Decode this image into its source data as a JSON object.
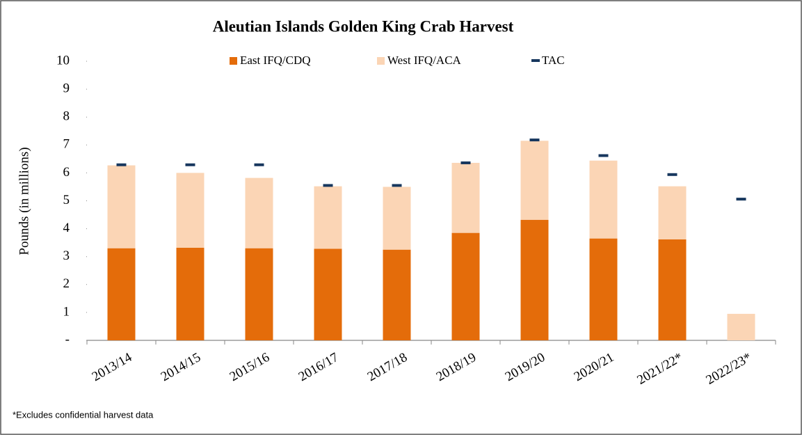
{
  "chart_data": {
    "type": "bar",
    "title": "Aleutian Islands Golden King Crab Harvest",
    "y_label": "Pounds (in millions)",
    "footnote": "*Excludes confidential harvest data",
    "categories": [
      "2013/14",
      "2014/15",
      "2015/16",
      "2016/17",
      "2017/18",
      "2018/19",
      "2019/20",
      "2020/21",
      "2021/22*",
      "2022/23*"
    ],
    "stacked": true,
    "series": [
      {
        "name": "East IFQ/CDQ",
        "color": "#e46c0a",
        "kind": "bar",
        "values": [
          3.3,
          3.32,
          3.3,
          3.28,
          3.25,
          3.85,
          4.32,
          3.65,
          3.62,
          null
        ]
      },
      {
        "name": "West IFQ/ACA",
        "color": "#fbd5b5",
        "kind": "bar",
        "values": [
          2.97,
          2.68,
          2.52,
          2.24,
          2.25,
          2.51,
          2.83,
          2.79,
          1.9,
          0.95
        ]
      },
      {
        "name": "TAC",
        "color": "#17375e",
        "kind": "dash",
        "values": [
          6.29,
          6.29,
          6.29,
          5.55,
          5.55,
          6.36,
          7.18,
          6.62,
          5.94,
          5.06
        ]
      }
    ],
    "ylim": [
      0,
      10
    ],
    "yticks": [
      {
        "value": 0,
        "label": "-"
      },
      1,
      2,
      3,
      4,
      5,
      6,
      7,
      8,
      9,
      10
    ],
    "grid": false
  }
}
